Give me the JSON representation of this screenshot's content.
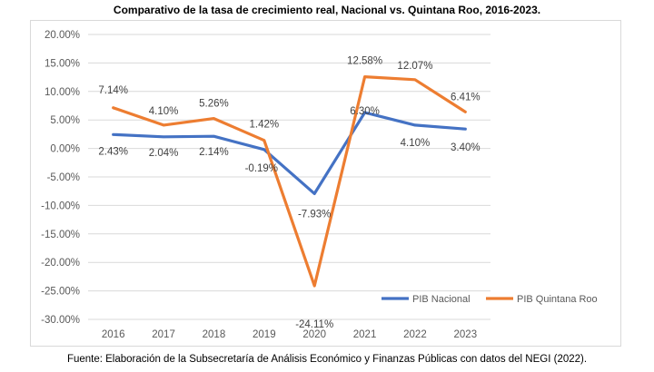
{
  "title": "Comparativo de la tasa de crecimiento real, Nacional vs. Quintana Roo, 2016-2023.",
  "source": "Fuente: Elaboración de la Subsecretaría de Análisis Económico y Finanzas Públicas con datos del NEGI (2022).",
  "chart_data": {
    "type": "line",
    "title": "",
    "xlabel": "",
    "ylabel": "",
    "categories": [
      "2016",
      "2017",
      "2018",
      "2019",
      "2020",
      "2021",
      "2022",
      "2023"
    ],
    "ylim": [
      -30,
      20
    ],
    "yticks": [
      "20.00%",
      "15.00%",
      "10.00%",
      "5.00%",
      "0.00%",
      "-5.00%",
      "-10.00%",
      "-15.00%",
      "-20.00%",
      "-25.00%",
      "-30.00%"
    ],
    "grid": true,
    "legend_position": "bottom-right",
    "series": [
      {
        "name": "PIB Nacional",
        "color": "#4472c4",
        "values": [
          2.43,
          2.04,
          2.14,
          -0.19,
          -7.93,
          6.3,
          4.1,
          3.4
        ],
        "labels": [
          "2.43%",
          "2.04%",
          "2.14%",
          "-0.19%",
          "-7.93%",
          "6.30%",
          "4.10%",
          "3.40%"
        ]
      },
      {
        "name": "PIB Quintana Roo",
        "color": "#ed7d31",
        "values": [
          7.14,
          4.1,
          5.26,
          1.42,
          -24.11,
          12.58,
          12.07,
          6.41
        ],
        "labels": [
          "7.14%",
          "4.10%",
          "5.26%",
          "1.42%",
          "-24.11%",
          "12.58%",
          "12.07%",
          "6.41%"
        ]
      }
    ]
  }
}
